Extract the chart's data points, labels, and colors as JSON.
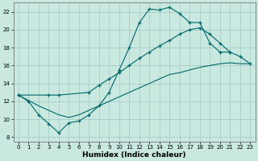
{
  "xlabel": "Humidex (Indice chaleur)",
  "bg_color": "#c8e8e0",
  "grid_color": "#a0c8c0",
  "line_color": "#006868",
  "xlim": [
    -0.5,
    23.5
  ],
  "ylim": [
    7.5,
    23.0
  ],
  "xticks": [
    0,
    1,
    2,
    3,
    4,
    5,
    6,
    7,
    8,
    9,
    10,
    11,
    12,
    13,
    14,
    15,
    16,
    17,
    18,
    19,
    20,
    21,
    22,
    23
  ],
  "yticks": [
    8,
    10,
    12,
    14,
    16,
    18,
    20,
    22
  ],
  "line1_x": [
    0,
    1,
    2,
    3,
    4,
    5,
    6,
    7,
    8,
    9,
    10,
    11,
    12,
    13,
    14,
    15,
    16,
    17,
    18,
    19,
    20,
    21
  ],
  "line1_y": [
    12.7,
    12.0,
    10.5,
    9.5,
    8.5,
    9.6,
    9.8,
    10.5,
    11.5,
    13.0,
    15.5,
    18.0,
    20.8,
    22.3,
    22.2,
    22.5,
    21.8,
    20.8,
    20.8,
    18.5,
    17.5,
    17.5
  ],
  "line2_x": [
    0,
    3,
    4,
    7,
    8,
    9,
    10,
    11,
    12,
    13,
    14,
    15,
    16,
    17,
    18,
    19,
    20,
    21,
    22,
    23
  ],
  "line2_y": [
    12.7,
    12.7,
    12.7,
    13.0,
    13.8,
    14.5,
    15.2,
    16.0,
    16.8,
    17.5,
    18.2,
    18.8,
    19.5,
    20.0,
    20.2,
    19.5,
    18.5,
    17.5,
    17.0,
    16.2
  ],
  "line3_x": [
    0,
    1,
    2,
    3,
    4,
    5,
    6,
    7,
    8,
    9,
    10,
    11,
    12,
    13,
    14,
    15,
    16,
    17,
    18,
    19,
    20,
    21,
    22,
    23
  ],
  "line3_y": [
    12.7,
    12.1,
    11.5,
    11.0,
    10.5,
    10.2,
    10.5,
    11.0,
    11.5,
    12.0,
    12.5,
    13.0,
    13.5,
    14.0,
    14.5,
    15.0,
    15.2,
    15.5,
    15.8,
    16.0,
    16.2,
    16.3,
    16.2,
    16.2
  ]
}
